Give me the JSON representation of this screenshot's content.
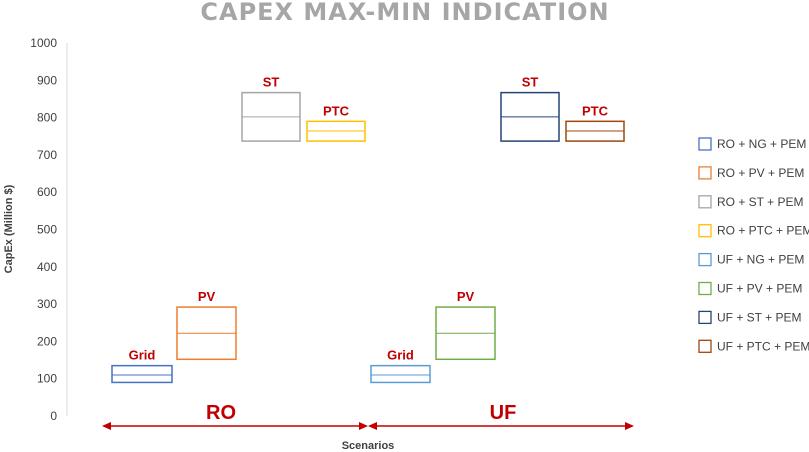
{
  "chart_data": {
    "type": "box",
    "title": "CAPEX MAX-MIN INDICATION",
    "xlabel": "Scenarios",
    "ylabel": "CapEx (Million $)",
    "ylim": [
      0,
      1000
    ],
    "yticks": [
      0,
      100,
      200,
      300,
      400,
      500,
      600,
      700,
      800,
      900,
      1000
    ],
    "grid": false,
    "legend_position": "right",
    "groups": [
      {
        "label": "RO",
        "color": "#c00000"
      },
      {
        "label": "UF",
        "color": "#c00000"
      }
    ],
    "series": [
      {
        "name": "RO + NG + PEM",
        "group": "RO",
        "box_label": "Grid",
        "color": "#4472c4",
        "min": 90,
        "median": 110,
        "max": 135
      },
      {
        "name": "RO + PV + PEM",
        "group": "RO",
        "box_label": "PV",
        "color": "#ed7d31",
        "min": 152,
        "median": 222,
        "max": 292
      },
      {
        "name": "RO + ST + PEM",
        "group": "RO",
        "box_label": "ST",
        "color": "#a5a5a5",
        "min": 737,
        "median": 802,
        "max": 867
      },
      {
        "name": "RO + PTC + PEM",
        "group": "RO",
        "box_label": "PTC",
        "color": "#ffc000",
        "min": 737,
        "median": 764,
        "max": 790
      },
      {
        "name": "UF + NG + PEM",
        "group": "UF",
        "box_label": "Grid",
        "color": "#5b9bd5",
        "min": 90,
        "median": 110,
        "max": 135
      },
      {
        "name": "UF + PV + PEM",
        "group": "UF",
        "box_label": "PV",
        "color": "#70ad47",
        "min": 152,
        "median": 222,
        "max": 292
      },
      {
        "name": "UF + ST + PEM",
        "group": "UF",
        "box_label": "ST",
        "color": "#264478",
        "min": 737,
        "median": 802,
        "max": 867
      },
      {
        "name": "UF + PTC + PEM",
        "group": "UF",
        "box_label": "PTC",
        "color": "#9e480e",
        "min": 737,
        "median": 764,
        "max": 790
      }
    ]
  }
}
